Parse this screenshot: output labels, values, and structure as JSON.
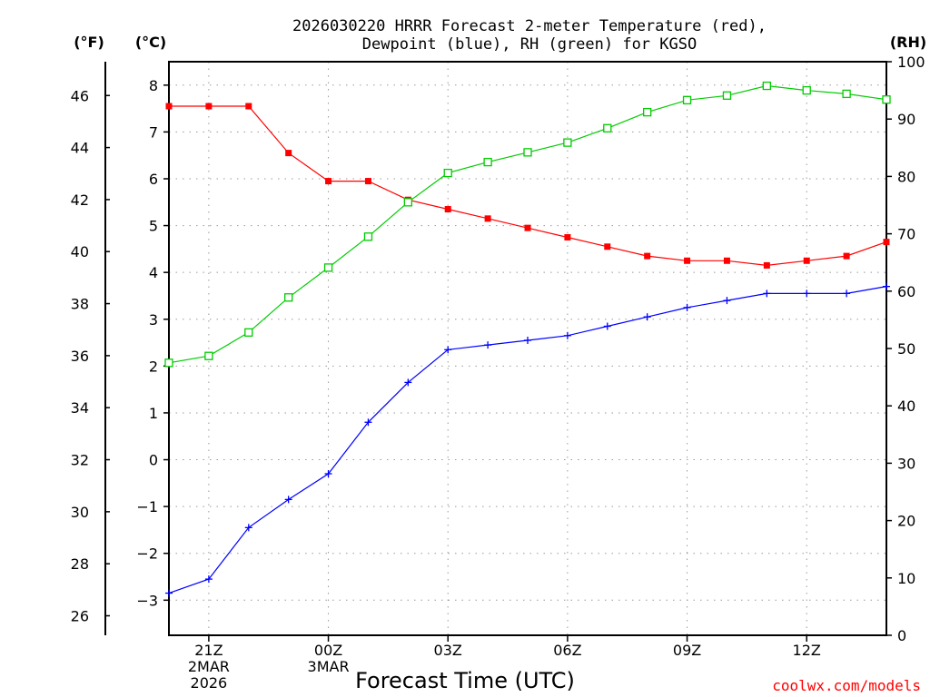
{
  "chart_data": {
    "type": "line",
    "title_line1": "2026030220 HRRR Forecast 2-meter Temperature (red),",
    "title_line2": "Dewpoint (blue), RH (green) for KGSO",
    "xlabel": "Forecast Time (UTC)",
    "credit": "coolwx.com/models",
    "units": {
      "fahrenheit": "(°F)",
      "celsius": "(°C)",
      "rh": "(RH)"
    },
    "x": [
      "20Z",
      "21Z",
      "22Z",
      "23Z",
      "00Z",
      "01Z",
      "02Z",
      "03Z",
      "04Z",
      "05Z",
      "06Z",
      "07Z",
      "08Z",
      "09Z",
      "10Z",
      "11Z",
      "12Z",
      "13Z",
      "14Z"
    ],
    "x_ticks": [
      {
        "index": 1,
        "label": "21Z",
        "sub1": "2MAR",
        "sub2": "2026"
      },
      {
        "index": 4,
        "label": "00Z",
        "sub1": "3MAR",
        "sub2": ""
      },
      {
        "index": 7,
        "label": "03Z",
        "sub1": "",
        "sub2": ""
      },
      {
        "index": 10,
        "label": "06Z",
        "sub1": "",
        "sub2": ""
      },
      {
        "index": 13,
        "label": "09Z",
        "sub1": "",
        "sub2": ""
      },
      {
        "index": 16,
        "label": "12Z",
        "sub1": "",
        "sub2": ""
      }
    ],
    "y_celsius": {
      "range": [
        -3.75,
        8.5
      ],
      "ticks": [
        -3,
        -2,
        -1,
        0,
        1,
        2,
        3,
        4,
        5,
        6,
        7,
        8
      ],
      "labels": [
        "−3",
        "−2",
        "−1",
        "0",
        "1",
        "2",
        "3",
        "4",
        "5",
        "6",
        "7",
        "8"
      ]
    },
    "y_fahrenheit": {
      "ticks": [
        26,
        28,
        30,
        32,
        34,
        36,
        38,
        40,
        42,
        44,
        46
      ]
    },
    "y_rh": {
      "range": [
        0,
        100
      ],
      "ticks": [
        0,
        10,
        20,
        30,
        40,
        50,
        60,
        70,
        80,
        90,
        100
      ]
    },
    "series": [
      {
        "name": "Temperature",
        "unit": "C",
        "axis": "celsius",
        "color": "#ff0000",
        "marker": "filled-square",
        "values": [
          7.55,
          7.55,
          7.55,
          6.55,
          5.95,
          5.95,
          5.55,
          5.35,
          5.15,
          4.95,
          4.75,
          4.55,
          4.35,
          4.25,
          4.25,
          4.15,
          4.25,
          4.35,
          4.65
        ]
      },
      {
        "name": "Dewpoint",
        "unit": "C",
        "axis": "celsius",
        "color": "#0000ff",
        "marker": "plus",
        "values": [
          -2.85,
          -2.55,
          -1.45,
          -0.85,
          -0.3,
          0.8,
          1.65,
          2.35,
          2.45,
          2.55,
          2.65,
          2.85,
          3.05,
          3.25,
          3.4,
          3.55,
          3.55,
          3.55,
          3.7
        ]
      },
      {
        "name": "RH",
        "unit": "%",
        "axis": "rh",
        "color": "#00cc00",
        "marker": "open-square",
        "values": [
          47.5,
          48.7,
          52.8,
          58.9,
          64.1,
          69.5,
          75.5,
          80.6,
          82.5,
          84.2,
          85.9,
          88.4,
          91.2,
          93.3,
          94.1,
          95.8,
          95.0,
          94.4,
          93.4
        ]
      }
    ]
  }
}
